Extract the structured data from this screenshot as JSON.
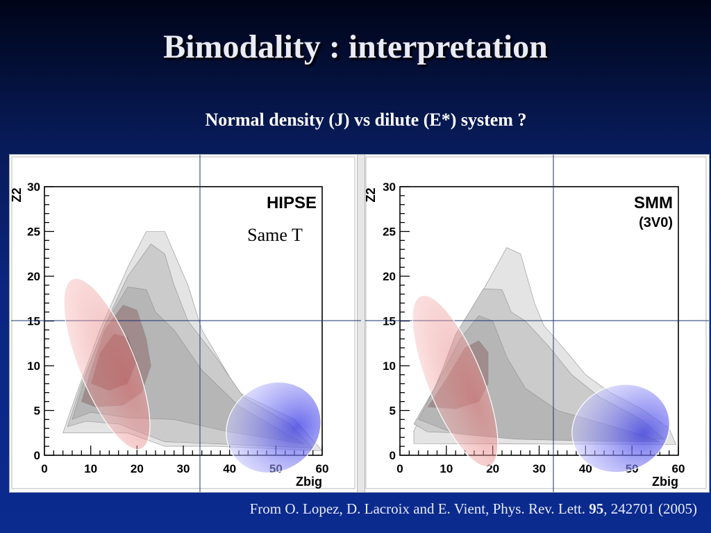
{
  "slide": {
    "title": "Bimodality : interpretation",
    "subtitle": "Normal density (J) vs dilute (E*) system ?",
    "citation": {
      "prefix": "From O. Lopez, D. Lacroix and E. Vient, Phys. Rev. Lett. ",
      "volume": "95",
      "suffix": ", 242701 (2005)"
    }
  },
  "chart_data": [
    {
      "type": "heatmap",
      "panel": "left",
      "title": "HIPSE",
      "annotation": "Same T",
      "xlabel": "Zbig",
      "ylabel": "Z2",
      "xlim": [
        0,
        60
      ],
      "ylim": [
        0,
        30
      ],
      "xticks": [
        "0",
        "10",
        "20",
        "30",
        "40",
        "50",
        "60"
      ],
      "yticks": [
        "0",
        "5",
        "10",
        "15",
        "20",
        "25",
        "30"
      ],
      "contour_levels": [
        {
          "level": 1,
          "color": "#e4e4e4",
          "outline": [
            [
              4,
              2.5
            ],
            [
              7,
              7
            ],
            [
              12,
              14
            ],
            [
              18,
              21
            ],
            [
              22,
              25
            ],
            [
              26,
              25
            ],
            [
              31,
              19
            ],
            [
              34,
              14
            ],
            [
              42,
              7
            ],
            [
              54,
              4
            ],
            [
              60,
              0.5
            ],
            [
              37,
              1.0
            ],
            [
              26,
              1.0
            ],
            [
              18,
              2.5
            ],
            [
              10,
              2.5
            ]
          ]
        },
        {
          "level": 2,
          "color": "#cbcbcb",
          "outline": [
            [
              5,
              3.2
            ],
            [
              8,
              8
            ],
            [
              13,
              14.5
            ],
            [
              18,
              20
            ],
            [
              23,
              23.6
            ],
            [
              26,
              22.5
            ],
            [
              28,
              19
            ],
            [
              31,
              15
            ],
            [
              37,
              11
            ],
            [
              43,
              6.5
            ],
            [
              53,
              3.5
            ],
            [
              58,
              0.8
            ],
            [
              36,
              1.3
            ],
            [
              26,
              1.5
            ],
            [
              16,
              3.5
            ],
            [
              9,
              3.8
            ]
          ]
        },
        {
          "level": 3,
          "color": "#b6b6b6",
          "outline": [
            [
              6,
              4.0
            ],
            [
              9,
              9
            ],
            [
              13,
              14.5
            ],
            [
              18,
              18.8
            ],
            [
              22,
              18.5
            ],
            [
              24,
              16
            ],
            [
              28,
              14
            ],
            [
              34,
              9.5
            ],
            [
              42,
              5.5
            ],
            [
              52,
              2.5
            ],
            [
              56,
              1.3
            ],
            [
              40,
              2.6
            ],
            [
              28,
              4
            ],
            [
              18,
              4.2
            ],
            [
              10,
              4.8
            ]
          ]
        },
        {
          "level": 4,
          "color": "#a08c8c",
          "outline": [
            [
              8,
              6
            ],
            [
              10,
              9.5
            ],
            [
              13,
              14
            ],
            [
              17,
              16.8
            ],
            [
              20,
              16.2
            ],
            [
              22,
              13
            ],
            [
              23,
              10
            ],
            [
              21,
              7
            ],
            [
              17,
              5.6
            ],
            [
              11,
              5.4
            ]
          ]
        },
        {
          "level": 5,
          "color": "#8a6464",
          "outline": [
            [
              10,
              8
            ],
            [
              12,
              11.5
            ],
            [
              15,
              13.6
            ],
            [
              18,
              13.2
            ],
            [
              20,
              10.5
            ],
            [
              18,
              8
            ],
            [
              14,
              7.2
            ]
          ]
        }
      ],
      "highlights": [
        {
          "label": "normal density",
          "color": "#f4a0a0",
          "cx": 13.5,
          "cy": 10.2,
          "rx": 11.0,
          "ry": 16.5,
          "angle_deg": -22
        },
        {
          "label": "dilute",
          "color": "#7878ee",
          "cx": 49.5,
          "cy": 3.1,
          "rx": 10.6,
          "ry": 8.1,
          "angle_deg": -35
        }
      ]
    },
    {
      "type": "heatmap",
      "panel": "right",
      "title": "SMM",
      "subtitle": "(3V0)",
      "xlabel": "Zbig",
      "ylabel": "Z2",
      "xlim": [
        0,
        60
      ],
      "ylim": [
        0,
        30
      ],
      "xticks": [
        "0",
        "10",
        "20",
        "30",
        "40",
        "50",
        "60"
      ],
      "yticks": [
        "0",
        "5",
        "10",
        "15",
        "20",
        "25",
        "30"
      ],
      "contour_levels": [
        {
          "level": 1,
          "color": "#e4e4e4",
          "outline": [
            [
              3,
              2.7
            ],
            [
              7,
              7
            ],
            [
              12,
              13
            ],
            [
              18,
              18.5
            ],
            [
              23,
              23.2
            ],
            [
              26,
              22.5
            ],
            [
              29,
              17
            ],
            [
              31,
              14.5
            ],
            [
              36,
              11.5
            ],
            [
              40,
              9
            ],
            [
              45,
              7.1
            ],
            [
              52,
              5.2
            ],
            [
              58,
              3
            ],
            [
              59.5,
              1.2
            ],
            [
              3,
              1.3
            ]
          ]
        },
        {
          "level": 2,
          "color": "#cbcbcb",
          "outline": [
            [
              3,
              3.5
            ],
            [
              8,
              8
            ],
            [
              12,
              13.5
            ],
            [
              18,
              18.6
            ],
            [
              22,
              18.5
            ],
            [
              24,
              16
            ],
            [
              27,
              15
            ],
            [
              32,
              12.2
            ],
            [
              37,
              9
            ],
            [
              43,
              6.5
            ],
            [
              52,
              4
            ],
            [
              57,
              1.8
            ],
            [
              38,
              2
            ],
            [
              25,
              2.2
            ],
            [
              14,
              2.5
            ],
            [
              6,
              2.6
            ]
          ]
        },
        {
          "level": 3,
          "color": "#b6b6b6",
          "outline": [
            [
              4,
              4
            ],
            [
              8,
              8
            ],
            [
              13,
              13
            ],
            [
              17,
              15.6
            ],
            [
              20,
              15
            ],
            [
              23,
              11
            ],
            [
              27,
              7.5
            ],
            [
              34,
              5
            ],
            [
              44,
              3.5
            ],
            [
              52,
              2.3
            ],
            [
              56,
              1.5
            ],
            [
              40,
              1.6
            ],
            [
              25,
              1.8
            ],
            [
              12,
              2.4
            ]
          ]
        },
        {
          "level": 4,
          "color": "#a08c8c",
          "outline": [
            [
              6,
              5.4
            ],
            [
              10,
              8.5
            ],
            [
              14,
              12
            ],
            [
              17,
              12.8
            ],
            [
              19,
              11.5
            ],
            [
              19,
              8
            ],
            [
              17,
              6
            ],
            [
              12,
              5.2
            ]
          ]
        }
      ],
      "highlights": [
        {
          "label": "normal density",
          "color": "#f4a0a0",
          "cx": 11.9,
          "cy": 8.3,
          "rx": 10.7,
          "ry": 16.5,
          "angle_deg": -22
        },
        {
          "label": "dilute",
          "color": "#7878ee",
          "cx": 47.6,
          "cy": 3.0,
          "rx": 10.7,
          "ry": 8.0,
          "angle_deg": -22
        }
      ]
    }
  ]
}
